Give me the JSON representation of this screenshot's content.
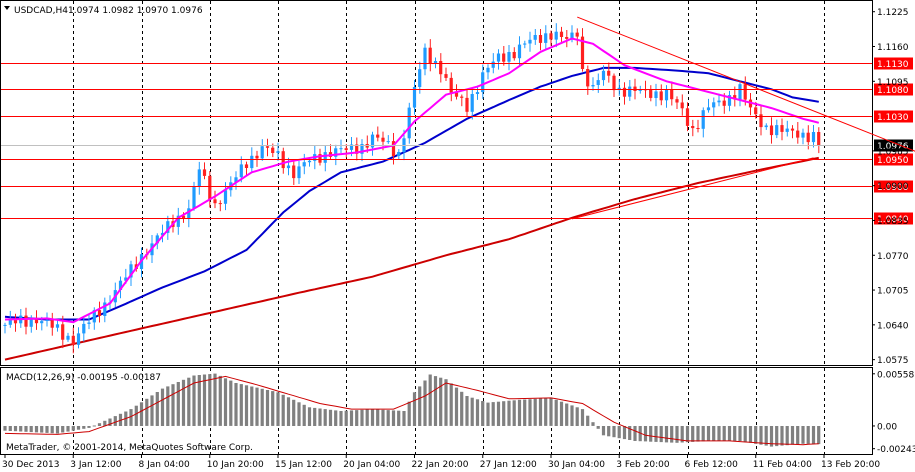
{
  "header": {
    "title": "USDCAD,H4",
    "ohlc": "1.0974 1.0982 1.0970 1.0976"
  },
  "macd_panel": {
    "title": "MACD(12,26,9) -0.00195 -0.00187",
    "copyright": "MetaTrader, © 2001-2014, MetaQuotes Software Corp."
  },
  "colors": {
    "background": "#ffffff",
    "grid": "#000000",
    "bull_candle": "#1f9bff",
    "bear_candle": "#ff2020",
    "sma_fast": "#ff00ff",
    "sma_mid": "#0000cc",
    "sma_slow": "#cc0000",
    "hline": "#ff0000",
    "hline_label_bg": "#ff0000",
    "hline_label_fg": "#ffffff",
    "macd_hist": "#808080",
    "macd_signal": "#cc0000"
  },
  "chart_data": {
    "type": "candlestick",
    "symbol": "USDCAD",
    "timeframe": "H4",
    "price_axis": {
      "ylim": [
        1.0565,
        1.1245
      ],
      "tick_labels": [
        "1.1225",
        "1.1160",
        "1.1095",
        "1.0965",
        "1.0900",
        "1.0835",
        "1.0770",
        "1.0705",
        "1.0640",
        "1.0575"
      ],
      "tick_values": [
        1.1225,
        1.116,
        1.1095,
        1.0965,
        1.09,
        1.0835,
        1.077,
        1.0705,
        1.064,
        1.0575
      ]
    },
    "time_axis": {
      "tick_labels": [
        "30 Dec 2013",
        "3 Jan 12:00",
        "8 Jan 04:00",
        "10 Jan 20:00",
        "15 Jan 12:00",
        "20 Jan 04:00",
        "22 Jan 20:00",
        "27 Jan 12:00",
        "30 Jan 04:00",
        "3 Feb 20:00",
        "6 Feb 12:00",
        "11 Feb 04:00",
        "13 Feb 20:00"
      ],
      "tick_bar_index": [
        0,
        13,
        26,
        39,
        52,
        65,
        78,
        91,
        104,
        117,
        130,
        143,
        156
      ],
      "gridline_bar_index": [
        13,
        26,
        39,
        52,
        65,
        78,
        91,
        104,
        117,
        130,
        143,
        156
      ],
      "bars_visible": 162
    },
    "current_price": {
      "value": 1.0976,
      "label": "1.0976"
    },
    "horizontal_levels": [
      {
        "value": 1.113,
        "label": "1.1130"
      },
      {
        "value": 1.108,
        "label": "1.1080"
      },
      {
        "value": 1.103,
        "label": "1.1030"
      },
      {
        "value": 1.095,
        "label": "1.0950"
      },
      {
        "value": 1.09,
        "label": "1.0900"
      },
      {
        "value": 1.084,
        "label": "1.0840"
      }
    ],
    "trendlines": [
      {
        "from": {
          "bar": 109,
          "price": 1.1215
        },
        "to": {
          "bar": 175,
          "price": 1.0958
        }
      },
      {
        "from": {
          "bar": 108,
          "price": 1.0838
        },
        "to": {
          "bar": 154,
          "price": 1.0952
        }
      }
    ],
    "close_anchors": [
      [
        0,
        1.064
      ],
      [
        6,
        1.0652
      ],
      [
        10,
        1.063
      ],
      [
        13,
        1.0612
      ],
      [
        16,
        1.0645
      ],
      [
        19,
        1.068
      ],
      [
        22,
        1.0715
      ],
      [
        26,
        1.077
      ],
      [
        29,
        1.08
      ],
      [
        32,
        1.0835
      ],
      [
        35,
        1.0855
      ],
      [
        37,
        1.093
      ],
      [
        40,
        1.0865
      ],
      [
        43,
        1.09
      ],
      [
        46,
        1.0945
      ],
      [
        49,
        1.097
      ],
      [
        52,
        1.0955
      ],
      [
        55,
        1.0925
      ],
      [
        58,
        1.0945
      ],
      [
        62,
        1.0965
      ],
      [
        65,
        1.0965
      ],
      [
        68,
        1.0975
      ],
      [
        70,
        1.099
      ],
      [
        73,
        1.0975
      ],
      [
        75,
        1.096
      ],
      [
        78,
        1.108
      ],
      [
        80,
        1.115
      ],
      [
        83,
        1.112
      ],
      [
        85,
        1.107
      ],
      [
        88,
        1.105
      ],
      [
        91,
        1.1105
      ],
      [
        94,
        1.114
      ],
      [
        97,
        1.115
      ],
      [
        101,
        1.1175
      ],
      [
        104,
        1.1185
      ],
      [
        107,
        1.117
      ],
      [
        109,
        1.119
      ],
      [
        110,
        1.1115
      ],
      [
        112,
        1.108
      ],
      [
        114,
        1.111
      ],
      [
        117,
        1.108
      ],
      [
        120,
        1.1075
      ],
      [
        123,
        1.1075
      ],
      [
        126,
        1.107
      ],
      [
        129,
        1.104
      ],
      [
        131,
        1.1005
      ],
      [
        134,
        1.1045
      ],
      [
        137,
        1.106
      ],
      [
        140,
        1.108
      ],
      [
        142,
        1.104
      ],
      [
        145,
        1.101
      ],
      [
        148,
        1.1
      ],
      [
        151,
        1.1
      ],
      [
        154,
        1.099
      ],
      [
        155,
        1.0976
      ]
    ],
    "sma_fast_anchors": [
      [
        0,
        1.065
      ],
      [
        8,
        1.0652
      ],
      [
        13,
        1.0645
      ],
      [
        20,
        1.068
      ],
      [
        26,
        1.076
      ],
      [
        33,
        1.084
      ],
      [
        40,
        1.088
      ],
      [
        47,
        1.0925
      ],
      [
        54,
        1.0945
      ],
      [
        60,
        1.0955
      ],
      [
        67,
        1.0962
      ],
      [
        74,
        1.0975
      ],
      [
        78,
        1.102
      ],
      [
        84,
        1.107
      ],
      [
        90,
        1.1085
      ],
      [
        96,
        1.111
      ],
      [
        102,
        1.115
      ],
      [
        108,
        1.1175
      ],
      [
        112,
        1.1165
      ],
      [
        118,
        1.1125
      ],
      [
        126,
        1.1095
      ],
      [
        134,
        1.1075
      ],
      [
        140,
        1.106
      ],
      [
        146,
        1.1045
      ],
      [
        152,
        1.1025
      ],
      [
        156,
        1.1015
      ]
    ],
    "sma_mid_anchors": [
      [
        0,
        1.0655
      ],
      [
        8,
        1.065
      ],
      [
        16,
        1.065
      ],
      [
        22,
        1.0675
      ],
      [
        30,
        1.071
      ],
      [
        38,
        1.074
      ],
      [
        46,
        1.078
      ],
      [
        53,
        1.085
      ],
      [
        58,
        1.089
      ],
      [
        64,
        1.0925
      ],
      [
        72,
        1.0945
      ],
      [
        80,
        1.098
      ],
      [
        88,
        1.1025
      ],
      [
        96,
        1.106
      ],
      [
        102,
        1.1085
      ],
      [
        108,
        1.1105
      ],
      [
        114,
        1.112
      ],
      [
        120,
        1.112
      ],
      [
        128,
        1.1115
      ],
      [
        134,
        1.111
      ],
      [
        140,
        1.1095
      ],
      [
        146,
        1.108
      ],
      [
        150,
        1.1065
      ],
      [
        156,
        1.1055
      ]
    ],
    "sma_slow_anchors": [
      [
        0,
        1.0575
      ],
      [
        20,
        1.062
      ],
      [
        38,
        1.066
      ],
      [
        56,
        1.07
      ],
      [
        70,
        1.073
      ],
      [
        84,
        1.077
      ],
      [
        96,
        1.08
      ],
      [
        108,
        1.084
      ],
      [
        120,
        1.0875
      ],
      [
        132,
        1.0905
      ],
      [
        144,
        1.093
      ],
      [
        155,
        1.0952
      ]
    ],
    "macd_axis": {
      "ylim": [
        -0.003,
        0.0062
      ],
      "tick_labels": [
        "0.00558",
        "0.00",
        "-0.00243"
      ],
      "tick_values": [
        0.00558,
        0.0,
        -0.00243
      ]
    },
    "macd_hist_anchors": [
      [
        0,
        -0.0005
      ],
      [
        10,
        -0.0008
      ],
      [
        16,
        -0.0002
      ],
      [
        24,
        0.0018
      ],
      [
        30,
        0.004
      ],
      [
        36,
        0.0054
      ],
      [
        40,
        0.0056
      ],
      [
        44,
        0.0046
      ],
      [
        52,
        0.0036
      ],
      [
        58,
        0.002
      ],
      [
        64,
        0.0016
      ],
      [
        70,
        0.0018
      ],
      [
        76,
        0.0016
      ],
      [
        78,
        0.0036
      ],
      [
        81,
        0.0055
      ],
      [
        84,
        0.005
      ],
      [
        88,
        0.0032
      ],
      [
        92,
        0.0025
      ],
      [
        98,
        0.0028
      ],
      [
        104,
        0.003
      ],
      [
        110,
        0.0018
      ],
      [
        114,
        -0.001
      ],
      [
        120,
        -0.0016
      ],
      [
        128,
        -0.0018
      ],
      [
        134,
        -0.0016
      ],
      [
        140,
        -0.0016
      ],
      [
        146,
        -0.0022
      ],
      [
        152,
        -0.0019
      ],
      [
        156,
        -0.00195
      ]
    ],
    "macd_signal_anchors": [
      [
        0,
        -0.0008
      ],
      [
        10,
        -0.0009
      ],
      [
        16,
        -0.0006
      ],
      [
        24,
        0.001
      ],
      [
        30,
        0.0028
      ],
      [
        36,
        0.0046
      ],
      [
        42,
        0.0053
      ],
      [
        48,
        0.0044
      ],
      [
        54,
        0.0034
      ],
      [
        60,
        0.0024
      ],
      [
        66,
        0.0018
      ],
      [
        74,
        0.0018
      ],
      [
        80,
        0.0032
      ],
      [
        84,
        0.0046
      ],
      [
        90,
        0.0038
      ],
      [
        96,
        0.0029
      ],
      [
        104,
        0.003
      ],
      [
        110,
        0.0024
      ],
      [
        116,
        0.0004
      ],
      [
        122,
        -0.001
      ],
      [
        130,
        -0.0016
      ],
      [
        138,
        -0.0016
      ],
      [
        146,
        -0.0019
      ],
      [
        152,
        -0.002
      ],
      [
        156,
        -0.00187
      ]
    ]
  }
}
